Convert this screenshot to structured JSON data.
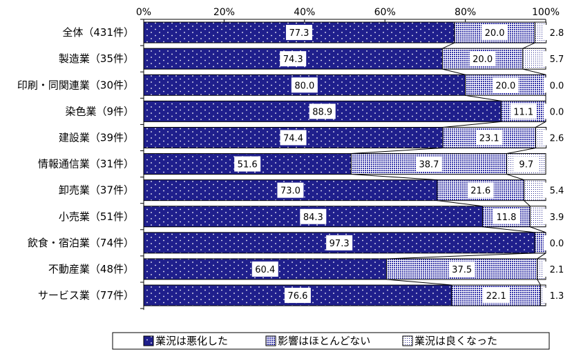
{
  "chart_data": {
    "type": "bar",
    "orientation": "horizontal",
    "stacked": true,
    "percent_stacked": true,
    "categories": [
      "全体（431件）",
      "製造業（35件）",
      "印刷・同関連業（30件）",
      "染色業（9件）",
      "建設業（39件）",
      "情報通信業（31件）",
      "卸売業（37件）",
      "小売業（51件）",
      "飲食・宿泊業（74件）",
      "不動産業（48件）",
      "サービス業（77件）"
    ],
    "series": [
      {
        "name": "業況は悪化した",
        "color": "#1f1f8c",
        "values": [
          77.3,
          74.3,
          80.0,
          88.9,
          74.4,
          51.6,
          73.0,
          84.3,
          97.3,
          60.4,
          76.6
        ]
      },
      {
        "name": "影響はほとんどない",
        "color": "#3535a8",
        "values": [
          20.0,
          20.0,
          20.0,
          11.1,
          23.1,
          38.7,
          21.6,
          11.8,
          2.7,
          37.5,
          22.1
        ]
      },
      {
        "name": "業況は良くなった",
        "color": "#ffffff",
        "values": [
          2.8,
          5.7,
          0.0,
          0.0,
          2.6,
          9.7,
          5.4,
          3.9,
          0.0,
          2.1,
          1.3
        ]
      }
    ],
    "x_ticks": [
      "0%",
      "20%",
      "40%",
      "60%",
      "80%",
      "100%"
    ],
    "xlim": [
      0,
      100
    ],
    "grid": false,
    "legend_position": "bottom"
  }
}
